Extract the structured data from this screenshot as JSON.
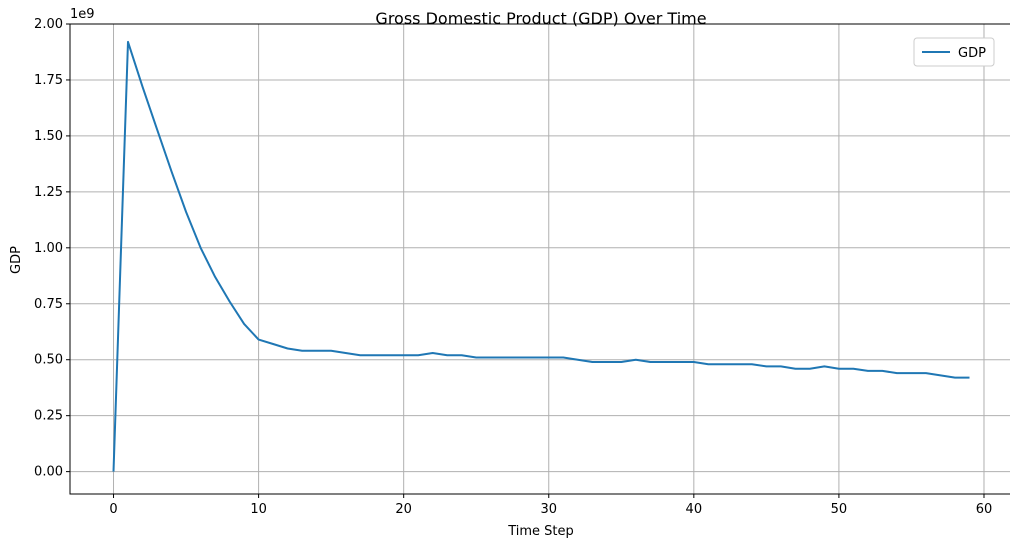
{
  "chart_data": {
    "type": "line",
    "title": "Gross Domestic Product (GDP) Over Time",
    "xlabel": "Time Step",
    "ylabel": "GDP",
    "y_offset_label": "1e9",
    "xlim": [
      -3,
      62
    ],
    "ylim": [
      -0.1,
      2.0
    ],
    "x_ticks": [
      0,
      10,
      20,
      30,
      40,
      50,
      60
    ],
    "x_tick_labels": [
      "0",
      "10",
      "20",
      "30",
      "40",
      "50",
      "60"
    ],
    "y_ticks": [
      0.0,
      0.25,
      0.5,
      0.75,
      1.0,
      1.25,
      1.5,
      1.75,
      2.0
    ],
    "y_tick_labels": [
      "0.00",
      "0.25",
      "0.50",
      "0.75",
      "1.00",
      "1.25",
      "1.50",
      "1.75",
      "2.00"
    ],
    "grid": true,
    "legend_position": "top-right",
    "line_color": "#1f77b4",
    "grid_color": "#b0b0b0",
    "series": [
      {
        "name": "GDP",
        "x": [
          0,
          1,
          2,
          3,
          4,
          5,
          6,
          7,
          8,
          9,
          10,
          11,
          12,
          13,
          14,
          15,
          16,
          17,
          18,
          19,
          20,
          21,
          22,
          23,
          24,
          25,
          26,
          27,
          28,
          29,
          30,
          31,
          32,
          33,
          34,
          35,
          36,
          37,
          38,
          39,
          40,
          41,
          42,
          43,
          44,
          45,
          46,
          47,
          48,
          49,
          50,
          51,
          52,
          53,
          54,
          55,
          56,
          57,
          58,
          59
        ],
        "values": [
          0.0,
          1.92,
          1.72,
          1.53,
          1.34,
          1.16,
          1.0,
          0.87,
          0.76,
          0.66,
          0.59,
          0.57,
          0.55,
          0.54,
          0.54,
          0.54,
          0.53,
          0.52,
          0.52,
          0.52,
          0.52,
          0.52,
          0.53,
          0.52,
          0.52,
          0.51,
          0.51,
          0.51,
          0.51,
          0.51,
          0.51,
          0.51,
          0.5,
          0.49,
          0.49,
          0.49,
          0.5,
          0.49,
          0.49,
          0.49,
          0.49,
          0.48,
          0.48,
          0.48,
          0.48,
          0.47,
          0.47,
          0.46,
          0.46,
          0.47,
          0.46,
          0.46,
          0.45,
          0.45,
          0.44,
          0.44,
          0.44,
          0.43,
          0.42,
          0.42
        ]
      }
    ]
  }
}
